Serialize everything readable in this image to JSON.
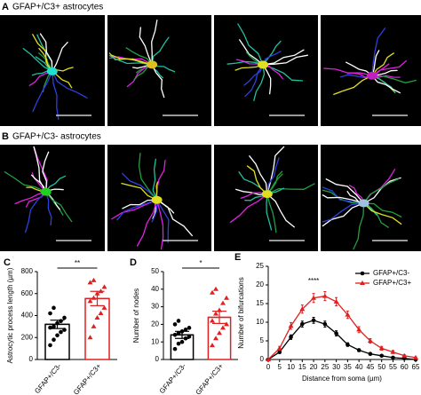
{
  "panels": [
    {
      "label": "A",
      "title": "GFAP+/C3+ astrocytes"
    },
    {
      "label": "B",
      "title": "GFAP+/C3- astrocytes"
    }
  ],
  "chart_data": [
    {
      "type": "bar",
      "panel": "C",
      "ylabel": "Astrocytic process length (µm)",
      "categories": [
        "GFAP+/C3-",
        "GFAP+/C3+"
      ],
      "values": [
        320,
        555
      ],
      "errors": [
        38,
        65
      ],
      "colors": [
        "#000000",
        "#e02020"
      ],
      "points": [
        [
          130,
          180,
          220,
          250,
          270,
          290,
          300,
          330,
          350,
          380,
          420,
          470
        ],
        [
          200,
          300,
          380,
          420,
          470,
          530,
          560,
          600,
          620,
          660,
          700,
          720
        ]
      ],
      "annotation": "**",
      "ylim": [
        0,
        800
      ],
      "yticks": [
        0,
        200,
        400,
        600,
        800
      ]
    },
    {
      "type": "bar",
      "panel": "D",
      "ylabel": "Number of nodes",
      "categories": [
        "GFAP+/C3-",
        "GFAP+/C3+"
      ],
      "values": [
        14,
        24
      ],
      "errors": [
        2,
        3.5
      ],
      "colors": [
        "#000000",
        "#e02020"
      ],
      "points": [
        [
          6,
          9,
          10,
          12,
          13,
          14,
          15,
          16,
          17,
          18,
          20,
          22
        ],
        [
          8,
          12,
          15,
          18,
          20,
          22,
          26,
          28,
          32,
          35,
          38,
          40
        ]
      ],
      "annotation": "*",
      "ylim": [
        0,
        50
      ],
      "yticks": [
        0,
        10,
        20,
        30,
        40,
        50
      ]
    },
    {
      "type": "line",
      "panel": "E",
      "ylabel": "Number of bifurcations",
      "xlabel": "Distance from soma (µm)",
      "x": [
        0,
        5,
        10,
        15,
        20,
        25,
        30,
        35,
        40,
        45,
        50,
        55,
        60,
        65
      ],
      "series": [
        {
          "name": "GFAP+/C3-",
          "color": "#000000",
          "marker": "circle",
          "values": [
            0,
            2,
            6,
            9.5,
            10.5,
            9.5,
            7,
            4,
            2.5,
            1.5,
            1,
            0.5,
            0.3,
            0
          ],
          "errors": [
            0,
            0.4,
            0.6,
            0.8,
            0.8,
            0.8,
            0.7,
            0.5,
            0.4,
            0.3,
            0.3,
            0.2,
            0.2,
            0
          ]
        },
        {
          "name": "GFAP+/C3+",
          "color": "#e02020",
          "marker": "triangle",
          "values": [
            0,
            3,
            9,
            13.5,
            16.5,
            17,
            15.5,
            12,
            8,
            5,
            3,
            2,
            1,
            0.5
          ],
          "errors": [
            0,
            0.5,
            0.9,
            1.1,
            1.2,
            1.2,
            1.1,
            1,
            0.8,
            0.6,
            0.5,
            0.4,
            0.3,
            0.2
          ]
        }
      ],
      "annotation": "****",
      "annotation_x": 20,
      "annotation_y": 21,
      "legend": "upper right",
      "xlim": [
        0,
        65
      ],
      "xticks": [
        0,
        5,
        10,
        15,
        20,
        25,
        30,
        35,
        40,
        45,
        50,
        55,
        60,
        65
      ],
      "ylim": [
        0,
        25
      ],
      "yticks": [
        0,
        5,
        10,
        15,
        20,
        25
      ]
    }
  ]
}
